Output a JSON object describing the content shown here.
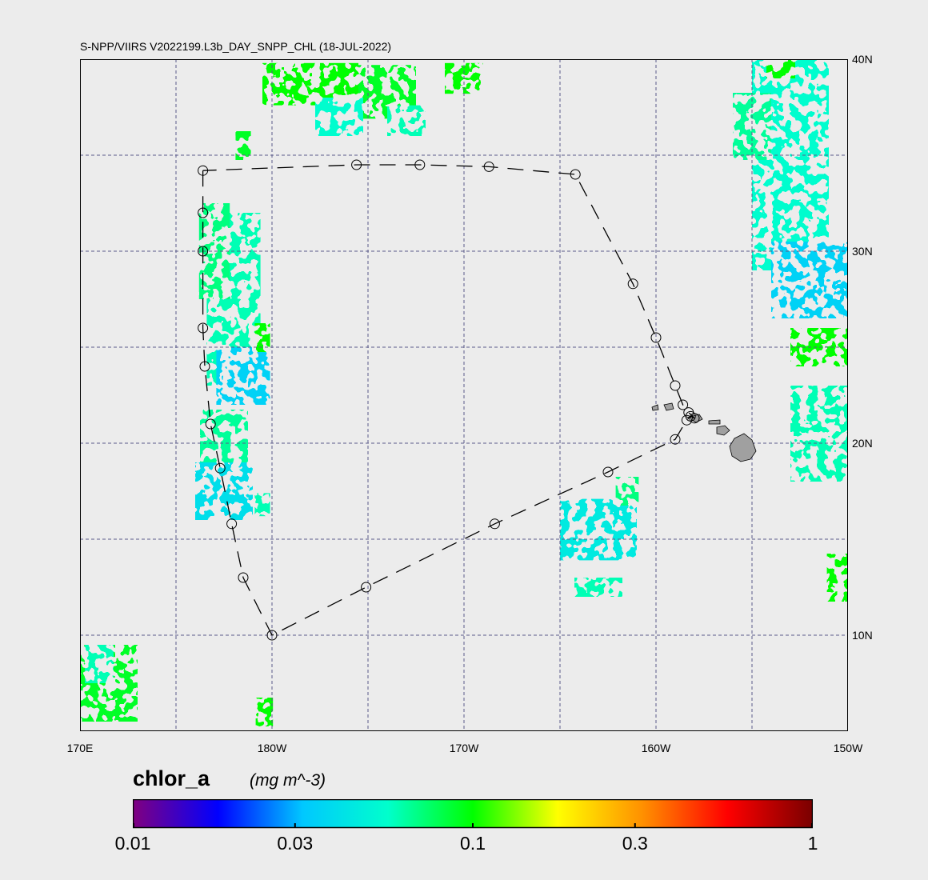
{
  "title": "S-NPP/VIIRS V2022199.L3b_DAY_SNPP_CHL (18-JUL-2022)",
  "map": {
    "lon_range": [
      170,
      210
    ],
    "lat_range": [
      5,
      40
    ],
    "lat_labels": [
      {
        "lat": 40,
        "text": "40N"
      },
      {
        "lat": 30,
        "text": "30N"
      },
      {
        "lat": 20,
        "text": "20N"
      },
      {
        "lat": 10,
        "text": "10N"
      }
    ],
    "lon_labels": [
      {
        "lon": 170,
        "text": "170E"
      },
      {
        "lon": 180,
        "text": "180W"
      },
      {
        "lon": 190,
        "text": "170W"
      },
      {
        "lon": 200,
        "text": "160W"
      },
      {
        "lon": 210,
        "text": "150W"
      }
    ],
    "grid_lons": [
      175,
      180,
      185,
      190,
      195,
      200,
      205
    ],
    "grid_lats": [
      10,
      15,
      20,
      25,
      30,
      35
    ],
    "land_color": "#a0a0a0",
    "grid_color": "#5a5a8a"
  },
  "track_points": [
    [
      176.4,
      34.2
    ],
    [
      176.4,
      32.0
    ],
    [
      176.4,
      30.0
    ],
    [
      176.4,
      26.0
    ],
    [
      176.5,
      24.0
    ],
    [
      176.8,
      21.0
    ],
    [
      177.3,
      18.7
    ],
    [
      177.9,
      15.8
    ],
    [
      178.5,
      13.0
    ],
    [
      180.0,
      10.0
    ],
    [
      184.9,
      12.5
    ],
    [
      191.6,
      15.8
    ],
    [
      197.5,
      18.5
    ],
    [
      201.0,
      20.2
    ],
    [
      201.6,
      21.2
    ],
    [
      201.8,
      21.4
    ],
    [
      202.0,
      21.3
    ],
    [
      201.7,
      21.6
    ],
    [
      201.4,
      22.0
    ],
    [
      201.0,
      23.0
    ],
    [
      200.0,
      25.5
    ],
    [
      198.8,
      28.3
    ],
    [
      195.8,
      34.0
    ],
    [
      191.3,
      34.4
    ],
    [
      187.7,
      34.5
    ],
    [
      184.4,
      34.5
    ],
    [
      176.4,
      34.2
    ]
  ],
  "chlor_patches": [
    {
      "lon": 182,
      "lat": 38.7,
      "w": 5.0,
      "h": 2.2,
      "value": 0.1
    },
    {
      "lon": 186,
      "lat": 38.3,
      "w": 3.0,
      "h": 2.8,
      "value": 0.09
    },
    {
      "lon": 183.5,
      "lat": 37.0,
      "w": 2.5,
      "h": 2.0,
      "value": 0.055
    },
    {
      "lon": 187,
      "lat": 36.8,
      "w": 2.0,
      "h": 1.6,
      "value": 0.06
    },
    {
      "lon": 190,
      "lat": 39.0,
      "w": 2.0,
      "h": 1.6,
      "value": 0.1
    },
    {
      "lon": 178,
      "lat": 27.5,
      "w": 2.8,
      "h": 9.0,
      "value": 0.06
    },
    {
      "lon": 177,
      "lat": 30.0,
      "w": 1.6,
      "h": 5.0,
      "value": 0.07
    },
    {
      "lon": 178.5,
      "lat": 23.5,
      "w": 2.8,
      "h": 3.0,
      "value": 0.035
    },
    {
      "lon": 177.5,
      "lat": 20.0,
      "w": 2.5,
      "h": 3.5,
      "value": 0.065
    },
    {
      "lon": 177.5,
      "lat": 17.5,
      "w": 3.0,
      "h": 3.0,
      "value": 0.04
    },
    {
      "lon": 179.5,
      "lat": 25.5,
      "w": 0.8,
      "h": 1.5,
      "value": 0.1
    },
    {
      "lon": 179.5,
      "lat": 16.8,
      "w": 0.8,
      "h": 1.2,
      "value": 0.06
    },
    {
      "lon": 197,
      "lat": 15.5,
      "w": 4.0,
      "h": 3.2,
      "value": 0.045
    },
    {
      "lon": 197,
      "lat": 12.5,
      "w": 2.5,
      "h": 1.0,
      "value": 0.06
    },
    {
      "lon": 207,
      "lat": 34.5,
      "w": 4.0,
      "h": 11.0,
      "value": 0.055
    },
    {
      "lon": 208,
      "lat": 28.5,
      "w": 4.0,
      "h": 4.0,
      "value": 0.035
    },
    {
      "lon": 208.5,
      "lat": 25.0,
      "w": 3.0,
      "h": 2.0,
      "value": 0.1
    },
    {
      "lon": 208.5,
      "lat": 20.5,
      "w": 3.0,
      "h": 5.0,
      "value": 0.06
    },
    {
      "lon": 209.5,
      "lat": 13.0,
      "w": 1.2,
      "h": 2.5,
      "value": 0.1
    },
    {
      "lon": 171.5,
      "lat": 7.5,
      "w": 3.0,
      "h": 4.0,
      "value": 0.09
    },
    {
      "lon": 171,
      "lat": 8.5,
      "w": 1.5,
      "h": 2.0,
      "value": 0.06
    },
    {
      "lon": 179.6,
      "lat": 6.0,
      "w": 0.9,
      "h": 1.5,
      "value": 0.1
    },
    {
      "lon": 178.5,
      "lat": 35.5,
      "w": 0.8,
      "h": 1.5,
      "value": 0.09
    },
    {
      "lon": 198.5,
      "lat": 17.5,
      "w": 1.2,
      "h": 1.5,
      "value": 0.07
    },
    {
      "lon": 205,
      "lat": 36.5,
      "w": 2.0,
      "h": 3.5,
      "value": 0.065
    },
    {
      "lon": 206.5,
      "lat": 39.5,
      "w": 1.5,
      "h": 1.0,
      "value": 0.1
    }
  ],
  "colorbar": {
    "title": "chlor_a",
    "units": "(mg m^-3)",
    "ticks": [
      {
        "value": 0.01,
        "label": "0.01"
      },
      {
        "value": 0.03,
        "label": "0.03"
      },
      {
        "value": 0.1,
        "label": "0.1"
      },
      {
        "value": 0.3,
        "label": "0.3"
      },
      {
        "value": 1,
        "label": "1"
      }
    ],
    "range": [
      0.01,
      1
    ],
    "scale": "log",
    "colors": [
      "#800080",
      "#0000ff",
      "#00c8ff",
      "#00ffcc",
      "#00ff00",
      "#ffff00",
      "#ff9000",
      "#ff0000",
      "#7a0000"
    ]
  }
}
